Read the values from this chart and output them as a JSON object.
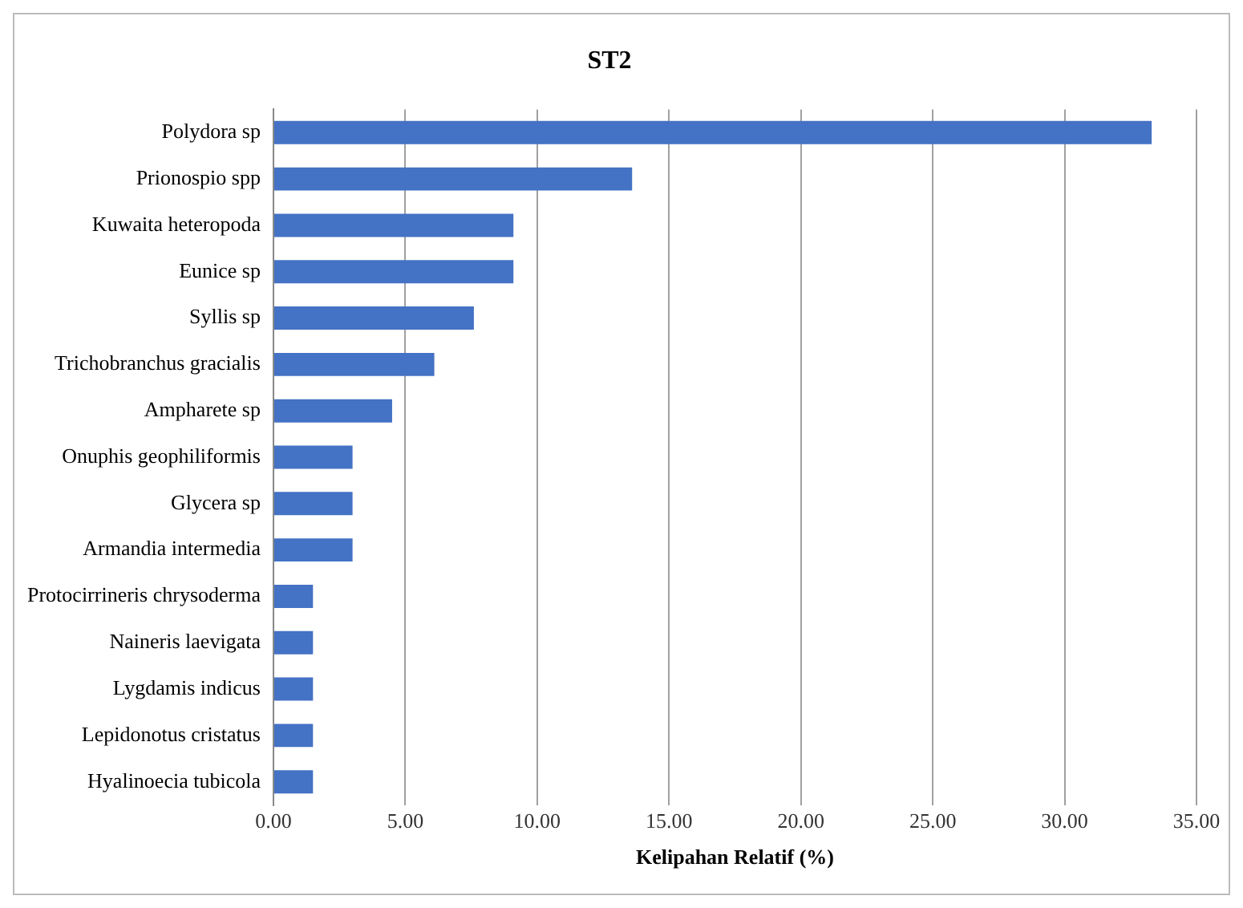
{
  "chart_data": {
    "type": "bar",
    "orientation": "horizontal",
    "title": "ST2",
    "xlabel": "Kelipahan Relatif (%)",
    "categories": [
      "Polydora sp",
      "Prionospio spp",
      "Kuwaita heteropoda",
      "Eunice sp",
      "Syllis sp",
      "Trichobranchus gracialis",
      "Ampharete sp",
      "Onuphis geophiliformis",
      "Glycera sp",
      "Armandia intermedia",
      "Protocirrineris chrysoderma",
      "Naineris laevigata",
      "Lygdamis indicus",
      "Lepidonotus cristatus",
      "Hyalinoecia tubicola"
    ],
    "values": [
      33.3,
      13.6,
      9.1,
      9.1,
      7.6,
      6.1,
      4.5,
      3.0,
      3.0,
      3.0,
      1.5,
      1.5,
      1.5,
      1.5,
      1.5
    ],
    "color": "#4472c4",
    "xlim": [
      0,
      35
    ],
    "xticks": [
      {
        "value": 0,
        "label": "0.00"
      },
      {
        "value": 5,
        "label": "5.00"
      },
      {
        "value": 10,
        "label": "10.00"
      },
      {
        "value": 15,
        "label": "15.00"
      },
      {
        "value": 20,
        "label": "20.00"
      },
      {
        "value": 25,
        "label": "25.00"
      },
      {
        "value": 30,
        "label": "30.00"
      },
      {
        "value": 35,
        "label": "35.00"
      }
    ],
    "grid": "x",
    "legend": false
  }
}
